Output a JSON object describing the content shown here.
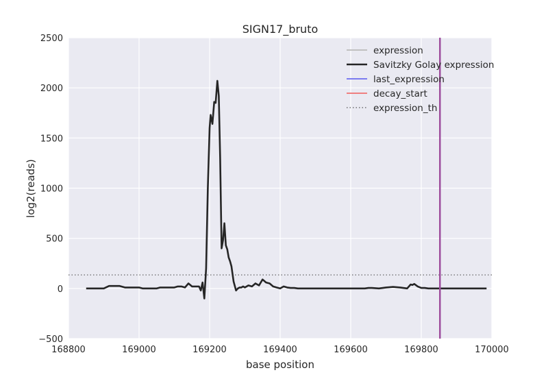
{
  "chart_data": {
    "type": "line",
    "title": "SIGN17_bruto",
    "xlabel": "base position",
    "ylabel": "log2(reads)",
    "xlim": [
      168800,
      170000
    ],
    "ylim": [
      -500,
      2500
    ],
    "xticks": [
      168800,
      169000,
      169200,
      169400,
      169600,
      169800,
      170000
    ],
    "yticks": [
      -500,
      0,
      500,
      1000,
      1500,
      2000,
      2500
    ],
    "xtick_labels": [
      "168800",
      "169000",
      "169200",
      "169400",
      "169600",
      "169800",
      "170000"
    ],
    "ytick_labels": [
      "−500",
      "0",
      "500",
      "1000",
      "1500",
      "2000",
      "2500"
    ],
    "grid": true,
    "legend_position": "top-right",
    "series": [
      {
        "name": "expression",
        "color": "#c0c0c0",
        "style": "solid",
        "x": [],
        "y": []
      },
      {
        "name": "Savitzky Golay expression",
        "color": "#262626",
        "style": "solid",
        "x": [
          168850,
          168900,
          168915,
          168930,
          168945,
          168960,
          168975,
          169000,
          169010,
          169020,
          169030,
          169040,
          169050,
          169060,
          169070,
          169080,
          169090,
          169100,
          169110,
          169120,
          169130,
          169140,
          169150,
          169160,
          169170,
          169175,
          169180,
          169185,
          169190,
          169195,
          169200,
          169203,
          169208,
          169213,
          169217,
          169222,
          169226,
          169230,
          169234,
          169238,
          169242,
          169246,
          169250,
          169254,
          169258,
          169262,
          169268,
          169275,
          169280,
          169285,
          169290,
          169295,
          169300,
          169310,
          169320,
          169330,
          169340,
          169350,
          169360,
          169370,
          169380,
          169390,
          169400,
          169410,
          169420,
          169430,
          169440,
          169450,
          169460,
          169500,
          169550,
          169600,
          169640,
          169650,
          169660,
          169680,
          169700,
          169720,
          169740,
          169760,
          169770,
          169775,
          169780,
          169790,
          169800,
          169805,
          169810,
          169820,
          169830,
          169850,
          169900,
          169985
        ],
        "y": [
          0,
          0,
          25,
          25,
          25,
          10,
          10,
          10,
          0,
          0,
          0,
          0,
          0,
          10,
          10,
          10,
          10,
          10,
          20,
          20,
          10,
          50,
          20,
          20,
          20,
          -20,
          60,
          -100,
          200,
          1000,
          1600,
          1730,
          1640,
          1860,
          1850,
          2070,
          1920,
          1300,
          400,
          480,
          650,
          430,
          390,
          310,
          270,
          220,
          70,
          -20,
          0,
          10,
          10,
          20,
          10,
          30,
          20,
          50,
          30,
          90,
          60,
          50,
          20,
          10,
          0,
          20,
          10,
          5,
          5,
          0,
          0,
          0,
          0,
          0,
          0,
          5,
          5,
          0,
          10,
          15,
          10,
          0,
          40,
          35,
          45,
          20,
          5,
          5,
          5,
          0,
          0,
          0,
          0,
          0
        ]
      },
      {
        "name": "last_expression",
        "color": "#7b7bf0",
        "style": "solid",
        "x": [
          169853,
          169853
        ],
        "y": [
          -500,
          2500
        ]
      },
      {
        "name": "decay_start",
        "color": "#ef7f7f",
        "style": "solid",
        "x": [
          169853,
          169853
        ],
        "y": [
          -500,
          2500
        ]
      },
      {
        "name": "expression_th",
        "color": "#555555",
        "style": "dotted",
        "x": [
          168800,
          170000
        ],
        "y": [
          135,
          135
        ]
      }
    ]
  },
  "colors": {
    "plot_background": "#eaeaf2",
    "grid": "#ffffff",
    "overlap_line": "#9b4c9e"
  }
}
